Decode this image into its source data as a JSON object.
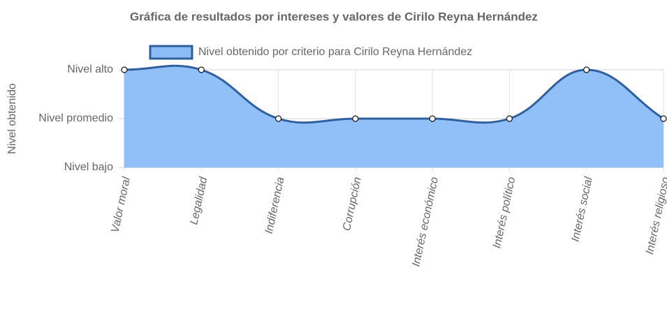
{
  "chart_data": {
    "type": "line",
    "title": "Gráfica de resultados por intereses y valores de Cirilo Reyna Hernández",
    "y_label": "Nivel obtenido",
    "categories": [
      "Valor moral",
      "Legalidad",
      "Indiferencia",
      "Corrupción",
      "Interés económico",
      "Interés político",
      "Interés social",
      "Interés religioso"
    ],
    "series": [
      {
        "name": "Nivel obtenido por criterio para Cirilo Reyna Hernández",
        "color": "#2f5f9e",
        "fill": "#8bbcf7",
        "values": [
          3,
          3,
          2,
          2,
          2,
          2,
          3,
          2
        ]
      }
    ],
    "ylim": [
      1,
      3
    ],
    "yticks": [
      {
        "value": 1,
        "label": "Nivel bajo"
      },
      {
        "value": 2,
        "label": "Nivel promedio"
      },
      {
        "value": 3,
        "label": "Nivel alto"
      }
    ],
    "grid": true
  }
}
